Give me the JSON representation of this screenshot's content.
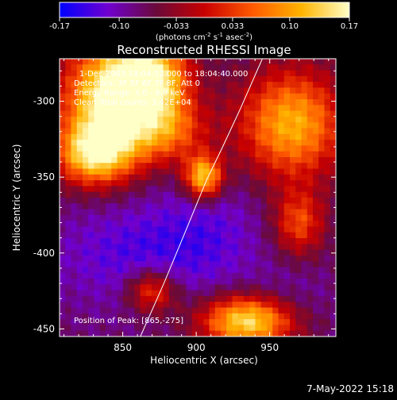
{
  "colorbar": {
    "ticks": [
      "-0.17",
      "-0.10",
      "-0.033",
      "0.033",
      "0.10",
      "0.17"
    ],
    "tick_values": [
      -0.17,
      -0.1,
      -0.033,
      0.033,
      0.1,
      0.17
    ],
    "range": [
      -0.17,
      0.17
    ],
    "units_prefix": "(photons cm",
    "units_exp1": "-2",
    "units_mid1": " s",
    "units_exp2": "-1",
    "units_mid2": " asec",
    "units_exp3": "-2",
    "units_suffix": ")",
    "colors": [
      "#0000ff",
      "#7000d0",
      "#6a0a3a",
      "#c80000",
      "#ff5a00",
      "#ffb400",
      "#ffffc8"
    ]
  },
  "chart_data": {
    "type": "heatmap",
    "title": "Reconstructed RHESSI Image",
    "xlabel": "Heliocentric X (arcsec)",
    "ylabel": "Heliocentric Y (arcsec)",
    "xlim": [
      807,
      995
    ],
    "ylim": [
      -455,
      -272
    ],
    "xticks": [
      850,
      900,
      950
    ],
    "yticks": [
      -300,
      -350,
      -400,
      -450
    ],
    "xtick_labels": [
      "850",
      "900",
      "950"
    ],
    "ytick_labels": [
      "-300",
      "-350",
      "-400",
      "-450"
    ],
    "grid": false,
    "annotations": {
      "time": "1-Dec-2003 18:04:12.000 to 18:04:40.000",
      "detectors": "Detectors: 3F 5F 6F 7F 8F, Att 0",
      "energy": "Energy Range: 3.0 - 6.0 keV",
      "method": "Clean    Total counts: 3.42E+04",
      "peak": "Position of Peak: [865,-275]"
    },
    "limb": [
      [
        862,
        -455
      ],
      [
        878,
        -420
      ],
      [
        893,
        -385
      ],
      [
        907,
        -352
      ],
      [
        918,
        -330
      ],
      [
        930,
        -305
      ],
      [
        945,
        -272
      ]
    ],
    "sources": [
      {
        "x": 840,
        "y": -300,
        "value": 0.16,
        "sx": 22,
        "sy": 28
      },
      {
        "x": 870,
        "y": -285,
        "value": 0.14,
        "sx": 18,
        "sy": 18
      },
      {
        "x": 830,
        "y": -335,
        "value": 0.1,
        "sx": 18,
        "sy": 14
      },
      {
        "x": 905,
        "y": -350,
        "value": 0.13,
        "sx": 9,
        "sy": 10
      },
      {
        "x": 965,
        "y": -315,
        "value": 0.11,
        "sx": 25,
        "sy": 25
      },
      {
        "x": 935,
        "y": -445,
        "value": 0.15,
        "sx": 22,
        "sy": 12
      },
      {
        "x": 880,
        "y": -320,
        "value": 0.05,
        "sx": 20,
        "sy": 15
      },
      {
        "x": 970,
        "y": -380,
        "value": 0.04,
        "sx": 12,
        "sy": 15
      },
      {
        "x": 870,
        "y": -425,
        "value": 0.05,
        "sx": 12,
        "sy": 10
      },
      {
        "x": 860,
        "y": -400,
        "value": -0.13,
        "sx": 40,
        "sy": 25
      },
      {
        "x": 910,
        "y": -385,
        "value": -0.11,
        "sx": 25,
        "sy": 25
      },
      {
        "x": 960,
        "y": -430,
        "value": -0.1,
        "sx": 22,
        "sy": 15
      }
    ]
  },
  "footer": {
    "date": "7-May-2022 15:18"
  }
}
